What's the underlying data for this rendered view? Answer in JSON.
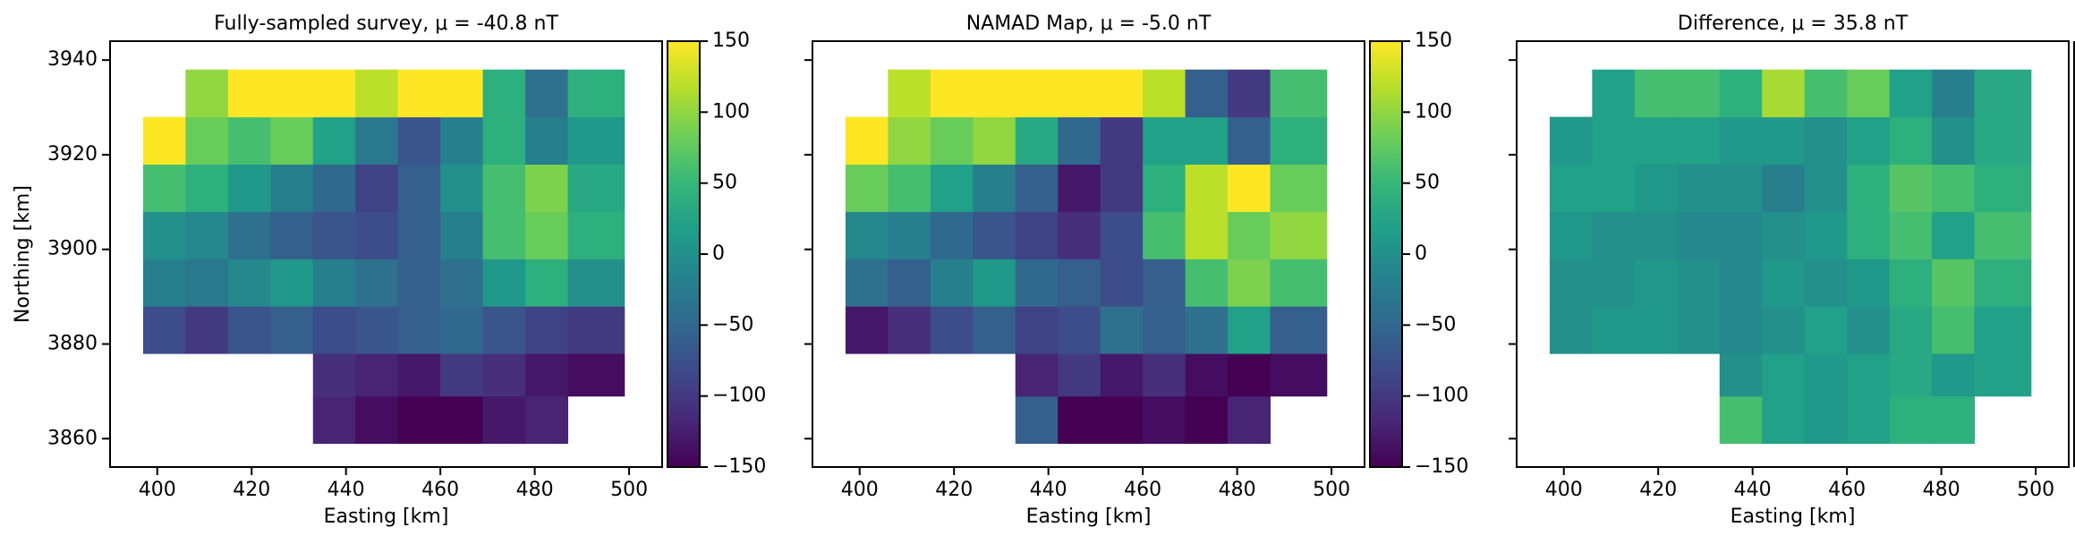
{
  "chart_data": [
    {
      "type": "heatmap",
      "title": "Fully-sampled survey, μ = -40.8 nT",
      "xlabel": "Easting [km]",
      "ylabel": "Northing [km]",
      "colormap": "viridis",
      "x_edges": [
        397,
        406,
        415,
        424,
        433,
        442,
        451,
        460,
        469,
        478,
        487,
        499
      ],
      "y_edges": [
        3859,
        3869,
        3878,
        3888,
        3898,
        3908,
        3918,
        3928,
        3938
      ],
      "z": [
        [
          null,
          null,
          null,
          null,
          -120,
          -140,
          -150,
          -150,
          -130,
          -120,
          null
        ],
        [
          null,
          null,
          null,
          null,
          -110,
          -120,
          -130,
          -100,
          -110,
          -130,
          -140
        ],
        [
          -80,
          -100,
          -70,
          -60,
          -80,
          -70,
          -60,
          -50,
          -70,
          -90,
          -100
        ],
        [
          -20,
          -30,
          -10,
          10,
          -20,
          -40,
          -60,
          -40,
          10,
          40,
          0
        ],
        [
          0,
          -10,
          -40,
          -60,
          -70,
          -80,
          -60,
          -20,
          60,
          80,
          40
        ],
        [
          60,
          40,
          10,
          -20,
          -50,
          -90,
          -60,
          0,
          60,
          90,
          30
        ],
        [
          150,
          80,
          60,
          80,
          20,
          -30,
          -70,
          -20,
          40,
          -20,
          10
        ],
        [
          null,
          100,
          150,
          150,
          150,
          120,
          150,
          150,
          40,
          -40,
          40
        ]
      ],
      "xlim": [
        390,
        507
      ],
      "ylim": [
        3854,
        3944
      ],
      "xticks": [
        400,
        420,
        440,
        460,
        480,
        500
      ],
      "yticks": [
        3860,
        3880,
        3900,
        3920,
        3940
      ],
      "clim": [
        -150,
        150
      ],
      "cticks": [
        {
          "value": -150,
          "label": "−150"
        },
        {
          "value": -100,
          "label": "−100"
        },
        {
          "value": -50,
          "label": "−50"
        },
        0,
        50,
        100,
        150
      ]
    },
    {
      "type": "heatmap",
      "title": "NAMAD Map, μ = -5.0 nT",
      "xlabel": "Easting [km]",
      "colormap": "viridis",
      "x_edges": [
        397,
        406,
        415,
        424,
        433,
        442,
        451,
        460,
        469,
        478,
        487,
        499
      ],
      "y_edges": [
        3859,
        3869,
        3878,
        3888,
        3898,
        3908,
        3918,
        3928,
        3938
      ],
      "z": [
        [
          null,
          null,
          null,
          null,
          -60,
          -150,
          -150,
          -140,
          -150,
          -120,
          null
        ],
        [
          null,
          null,
          null,
          null,
          -120,
          -100,
          -130,
          -110,
          -140,
          -150,
          -140
        ],
        [
          -130,
          -110,
          -80,
          -60,
          -90,
          -80,
          -40,
          -60,
          -40,
          20,
          -60
        ],
        [
          -40,
          -60,
          -20,
          10,
          -50,
          -60,
          -80,
          -60,
          60,
          90,
          60
        ],
        [
          -10,
          -20,
          -50,
          -70,
          -90,
          -110,
          -80,
          60,
          120,
          80,
          100
        ],
        [
          80,
          60,
          20,
          -20,
          -60,
          -130,
          -100,
          40,
          120,
          150,
          80
        ],
        [
          150,
          100,
          80,
          100,
          30,
          -50,
          -100,
          20,
          20,
          -60,
          40
        ],
        [
          null,
          120,
          150,
          150,
          150,
          150,
          150,
          120,
          -60,
          -100,
          60
        ]
      ],
      "xlim": [
        390,
        507
      ],
      "ylim": [
        3854,
        3944
      ],
      "xticks": [
        400,
        420,
        440,
        460,
        480,
        500
      ],
      "clim": [
        -150,
        150
      ],
      "cticks": [
        {
          "value": -150,
          "label": "−150"
        },
        {
          "value": -100,
          "label": "−100"
        },
        {
          "value": -50,
          "label": "−50"
        },
        0,
        50,
        100,
        150
      ]
    },
    {
      "type": "heatmap",
      "title": "Difference, μ = 35.8 nT",
      "xlabel": "Easting [km]",
      "colormap": "viridis",
      "x_edges": [
        397,
        406,
        415,
        424,
        433,
        442,
        451,
        460,
        469,
        478,
        487,
        499
      ],
      "y_edges": [
        3859,
        3869,
        3878,
        3888,
        3898,
        3908,
        3918,
        3928,
        3938
      ],
      "z": [
        [
          null,
          null,
          null,
          null,
          60,
          20,
          10,
          20,
          40,
          40,
          null
        ],
        [
          null,
          null,
          null,
          null,
          0,
          20,
          10,
          20,
          30,
          10,
          20
        ],
        [
          0,
          10,
          10,
          0,
          -10,
          0,
          20,
          0,
          30,
          60,
          20
        ],
        [
          0,
          0,
          10,
          0,
          -10,
          10,
          0,
          10,
          40,
          70,
          40
        ],
        [
          10,
          0,
          0,
          -10,
          -10,
          0,
          10,
          40,
          60,
          20,
          60
        ],
        [
          20,
          20,
          10,
          0,
          0,
          -20,
          0,
          40,
          70,
          60,
          40
        ],
        [
          10,
          20,
          20,
          20,
          10,
          10,
          0,
          20,
          40,
          0,
          30
        ],
        [
          null,
          20,
          60,
          60,
          40,
          110,
          60,
          80,
          20,
          -20,
          30
        ]
      ],
      "xlim": [
        390,
        507
      ],
      "ylim": [
        3854,
        3944
      ],
      "xticks": [
        400,
        420,
        440,
        460,
        480,
        500
      ],
      "clim": [
        -150,
        150
      ]
    }
  ]
}
